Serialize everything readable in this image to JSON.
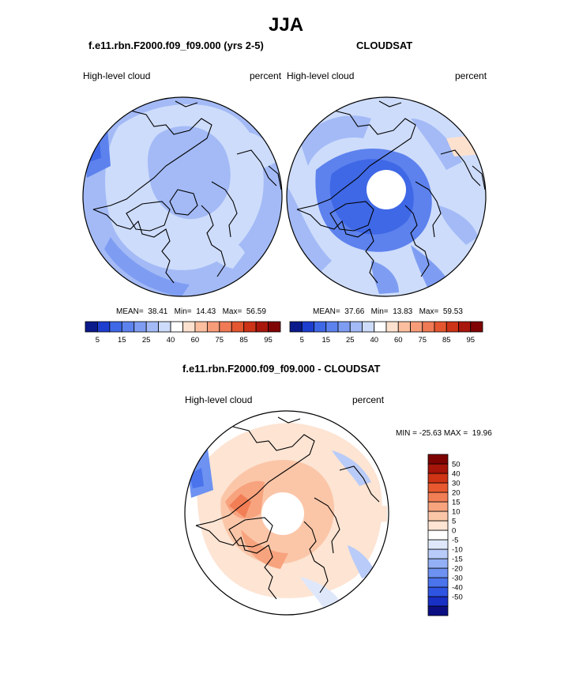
{
  "figure": {
    "title": "JJA"
  },
  "colors": {
    "abs_scale": [
      "#0a1a8a",
      "#1e3ed0",
      "#3f68e6",
      "#5d82ee",
      "#7e9df2",
      "#a3baf6",
      "#cddcfb",
      "#ffffff",
      "#fde1cf",
      "#fbbf9f",
      "#f69c79",
      "#ef7a55",
      "#e4562f",
      "#cc3317",
      "#a8160c",
      "#800404"
    ],
    "diff_scale": [
      "#0b0f82",
      "#1830c4",
      "#2e54e2",
      "#4a73ec",
      "#6d92f1",
      "#93aff5",
      "#b9cbf8",
      "#dfe8fb",
      "#ffffff",
      "#fde4d3",
      "#fbc6a8",
      "#f7a37e",
      "#f27e55",
      "#e9592f",
      "#cf3415",
      "#a6140a",
      "#7d0303"
    ],
    "map_fill_light": "#c9dafa",
    "coast": "#000000"
  },
  "panels": [
    {
      "title": "f.e11.rbn.F2000.f09_f09.000 (yrs 2-5)",
      "left_label": "High-level cloud",
      "right_label": "percent",
      "stats": {
        "mean_label": "MEAN=",
        "mean": "38.41",
        "min_label": "Min=",
        "min": "14.43",
        "max_label": "Max=",
        "max": "56.59"
      },
      "has_hole": false
    },
    {
      "title": "CLOUDSAT",
      "left_label": "High-level cloud",
      "right_label": "percent",
      "stats": {
        "mean_label": "MEAN=",
        "mean": "37.66",
        "min_label": "Min=",
        "min": "13.83",
        "max_label": "Max=",
        "max": "59.53"
      },
      "has_hole": true
    },
    {
      "title": "f.e11.rbn.F2000.f09_f09.000 - CLOUDSAT",
      "left_label": "High-level cloud",
      "right_label": "percent",
      "stats": {
        "min_label": "MIN =",
        "min": "-25.63",
        "max_label": "MAX =",
        "max": "19.96"
      },
      "has_hole": true
    }
  ],
  "chart_data": [
    {
      "type": "heatmap",
      "title": "f.e11.rbn.F2000.f09_f09.000 (yrs 2-5)",
      "projection": "north polar stereographic",
      "variable": "High-level cloud",
      "units": "percent",
      "colorbar_levels": [
        5,
        10,
        15,
        20,
        25,
        30,
        40,
        50,
        60,
        70,
        75,
        80,
        85,
        90,
        95
      ],
      "colorbar_tick_labels": [
        "5",
        "15",
        "25",
        "40",
        "60",
        "75",
        "85",
        "95"
      ],
      "colorbar_orientation": "horizontal",
      "mean": 38.41,
      "min": 14.43,
      "max": 56.59
    },
    {
      "type": "heatmap",
      "title": "CLOUDSAT",
      "projection": "north polar stereographic",
      "variable": "High-level cloud",
      "units": "percent",
      "colorbar_levels": [
        5,
        10,
        15,
        20,
        25,
        30,
        40,
        50,
        60,
        70,
        75,
        80,
        85,
        90,
        95
      ],
      "colorbar_tick_labels": [
        "5",
        "15",
        "25",
        "40",
        "60",
        "75",
        "85",
        "95"
      ],
      "colorbar_orientation": "horizontal",
      "mean": 37.66,
      "min": 13.83,
      "max": 59.53
    },
    {
      "type": "heatmap",
      "title": "f.e11.rbn.F2000.f09_f09.000 - CLOUDSAT",
      "projection": "north polar stereographic",
      "variable": "High-level cloud",
      "units": "percent",
      "colorbar_levels": [
        50,
        40,
        30,
        20,
        15,
        10,
        5,
        0,
        -5,
        -10,
        -15,
        -20,
        -30,
        -40,
        -50
      ],
      "colorbar_tick_labels": [
        "50",
        "40",
        "30",
        "20",
        "15",
        "10",
        "5",
        "0",
        "-5",
        "-10",
        "-15",
        "-20",
        "-30",
        "-40",
        "-50"
      ],
      "colorbar_orientation": "vertical",
      "min": -25.63,
      "max": 19.96
    }
  ]
}
